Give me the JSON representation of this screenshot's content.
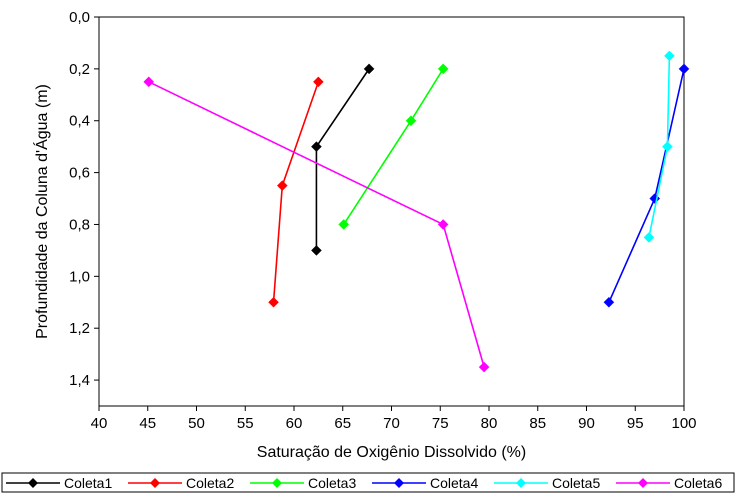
{
  "chart_data": {
    "type": "line",
    "title": "",
    "xlabel": "Saturação de Oxigênio Dissolvido (%)",
    "ylabel": "Profundidade da Coluna d'Água (m)",
    "xlim": [
      40,
      100
    ],
    "ylim": [
      0,
      1.5
    ],
    "y_inverted": true,
    "grid": false,
    "legend_position": "bottom",
    "x_ticks": [
      "40",
      "45",
      "50",
      "55",
      "60",
      "65",
      "70",
      "75",
      "80",
      "85",
      "90",
      "95",
      "100"
    ],
    "y_ticks": [
      "0,0",
      "0,2",
      "0,4",
      "0,6",
      "0,8",
      "1,0",
      "1,2",
      "1,4"
    ],
    "series": [
      {
        "name": "Coleta1",
        "color": "#000000",
        "marker": "diamond",
        "points": [
          {
            "x": 67.7,
            "y": 0.2
          },
          {
            "x": 62.3,
            "y": 0.5
          },
          {
            "x": 62.3,
            "y": 0.9
          }
        ]
      },
      {
        "name": "Coleta2",
        "color": "#ff0000",
        "marker": "diamond",
        "points": [
          {
            "x": 62.5,
            "y": 0.25
          },
          {
            "x": 58.8,
            "y": 0.65
          },
          {
            "x": 57.9,
            "y": 1.1
          }
        ]
      },
      {
        "name": "Coleta3",
        "color": "#00ff00",
        "marker": "diamond",
        "points": [
          {
            "x": 75.3,
            "y": 0.2
          },
          {
            "x": 72.0,
            "y": 0.4
          },
          {
            "x": 65.1,
            "y": 0.8
          }
        ]
      },
      {
        "name": "Coleta4",
        "color": "#0000ff",
        "marker": "diamond",
        "points": [
          {
            "x": 100.0,
            "y": 0.2
          },
          {
            "x": 97.0,
            "y": 0.7
          },
          {
            "x": 92.3,
            "y": 1.1
          }
        ]
      },
      {
        "name": "Coleta5",
        "color": "#00ffff",
        "marker": "diamond",
        "points": [
          {
            "x": 98.5,
            "y": 0.15
          },
          {
            "x": 98.3,
            "y": 0.5
          },
          {
            "x": 96.4,
            "y": 0.85
          }
        ]
      },
      {
        "name": "Coleta6",
        "color": "#ff00ff",
        "marker": "diamond",
        "points": [
          {
            "x": 45.1,
            "y": 0.25
          },
          {
            "x": 75.3,
            "y": 0.8
          },
          {
            "x": 79.5,
            "y": 1.35
          }
        ]
      }
    ]
  }
}
